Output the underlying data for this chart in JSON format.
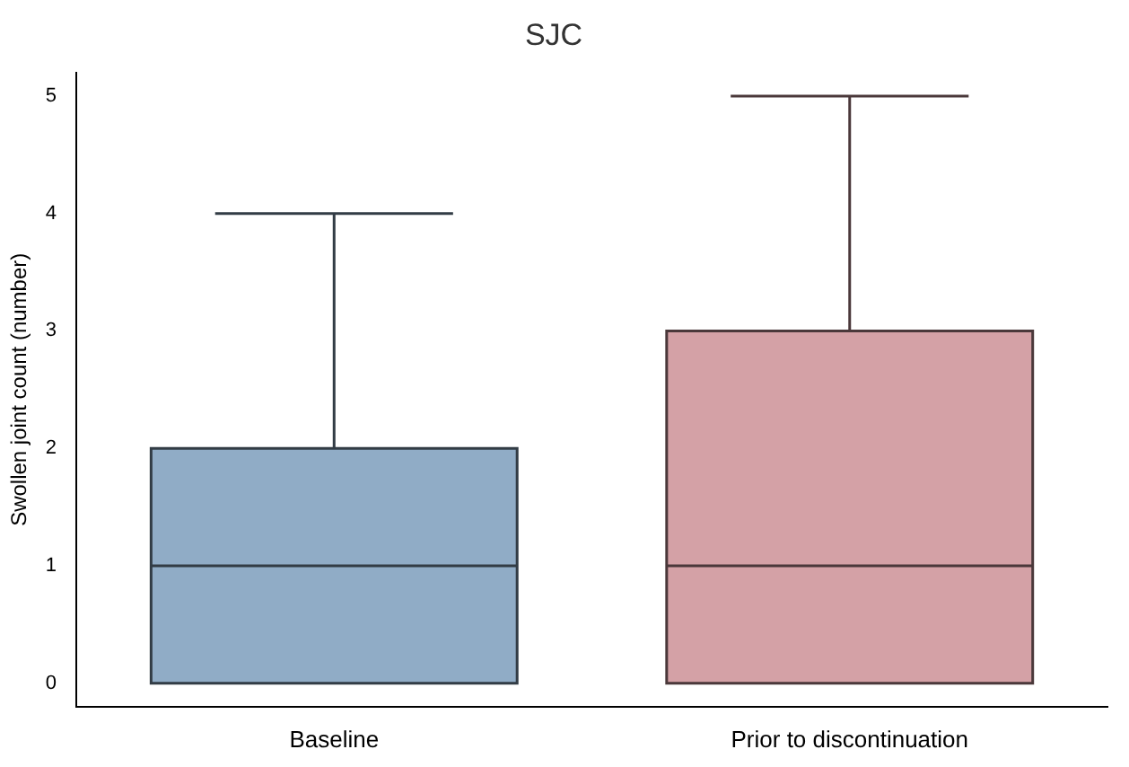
{
  "chart_data": {
    "type": "box",
    "title": "SJC",
    "ylabel": "Swollen joint count (number)",
    "categories": [
      "Baseline",
      "Prior to discontinuation"
    ],
    "boxes": [
      {
        "low": 0,
        "q1": 0,
        "median": 1,
        "q3": 2,
        "high": 4
      },
      {
        "low": 0,
        "q1": 0,
        "median": 1,
        "q3": 3,
        "high": 5
      }
    ],
    "colors": [
      "#90acc6",
      "#d4a1a6"
    ],
    "ylim": [
      -0.2,
      5.2
    ],
    "yticks": [
      0,
      1,
      2,
      3,
      4,
      5
    ],
    "grid": false,
    "legend": false
  }
}
